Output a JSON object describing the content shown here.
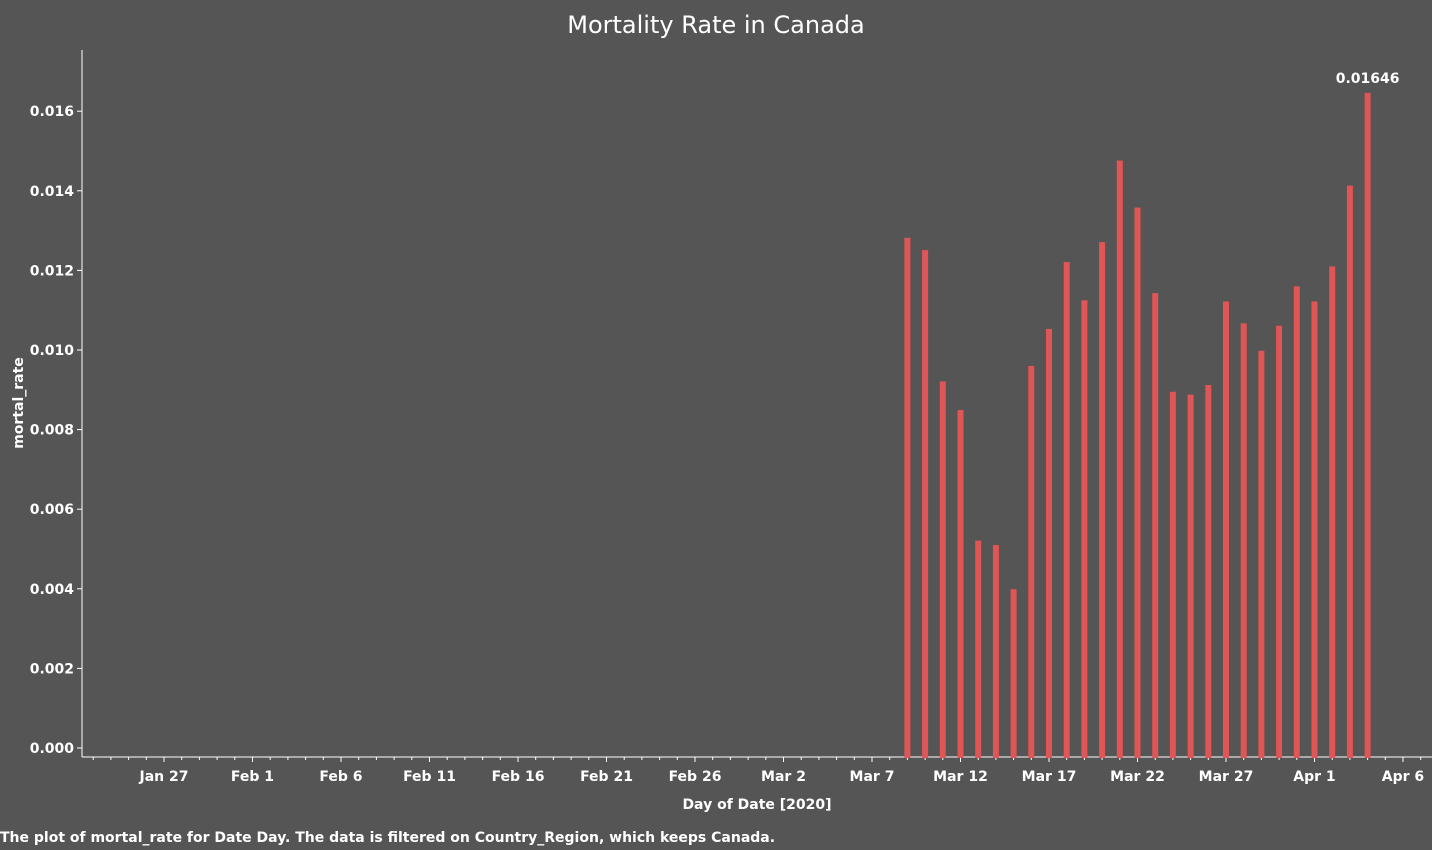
{
  "caption": "The plot of mortal_rate for Date Day. The data is filtered on Country_Region, which keeps Canada.",
  "chart_data": {
    "type": "bar",
    "title": "Mortality Rate in Canada",
    "xlabel": "Day of Date [2020]",
    "ylabel": "mortal_rate",
    "x_ticks": [
      "Jan 27",
      "Feb 1",
      "Feb 6",
      "Feb 11",
      "Feb 16",
      "Feb 21",
      "Feb 26",
      "Mar 2",
      "Mar 7",
      "Mar 12",
      "Mar 17",
      "Mar 22",
      "Mar 27",
      "Apr 1",
      "Apr 6"
    ],
    "y_ticks": [
      "0.000",
      "0.002",
      "0.004",
      "0.006",
      "0.008",
      "0.010",
      "0.012",
      "0.014",
      "0.016"
    ],
    "ylim": [
      0,
      0.0178
    ],
    "bar_color": "#e05555",
    "background_color": "#555555",
    "categories": [
      "Mar 9",
      "Mar 10",
      "Mar 11",
      "Mar 12",
      "Mar 13",
      "Mar 14",
      "Mar 15",
      "Mar 16",
      "Mar 17",
      "Mar 18",
      "Mar 19",
      "Mar 20",
      "Mar 21",
      "Mar 22",
      "Mar 23",
      "Mar 24",
      "Mar 25",
      "Mar 26",
      "Mar 27",
      "Mar 28",
      "Mar 29",
      "Mar 30",
      "Mar 31",
      "Apr 1",
      "Apr 2",
      "Apr 3",
      "Apr 4"
    ],
    "values": [
      0.01282,
      0.01251,
      0.00921,
      0.00849,
      0.00521,
      0.0051,
      0.00399,
      0.0096,
      0.01053,
      0.01221,
      0.01125,
      0.01271,
      0.01476,
      0.01358,
      0.01143,
      0.00895,
      0.00888,
      0.00912,
      0.01122,
      0.01067,
      0.00998,
      0.01061,
      0.0116,
      0.01122,
      0.0121,
      0.01413,
      0.01646
    ],
    "data_labels": [
      {
        "category": "Apr 4",
        "text": "0.01646"
      }
    ]
  }
}
